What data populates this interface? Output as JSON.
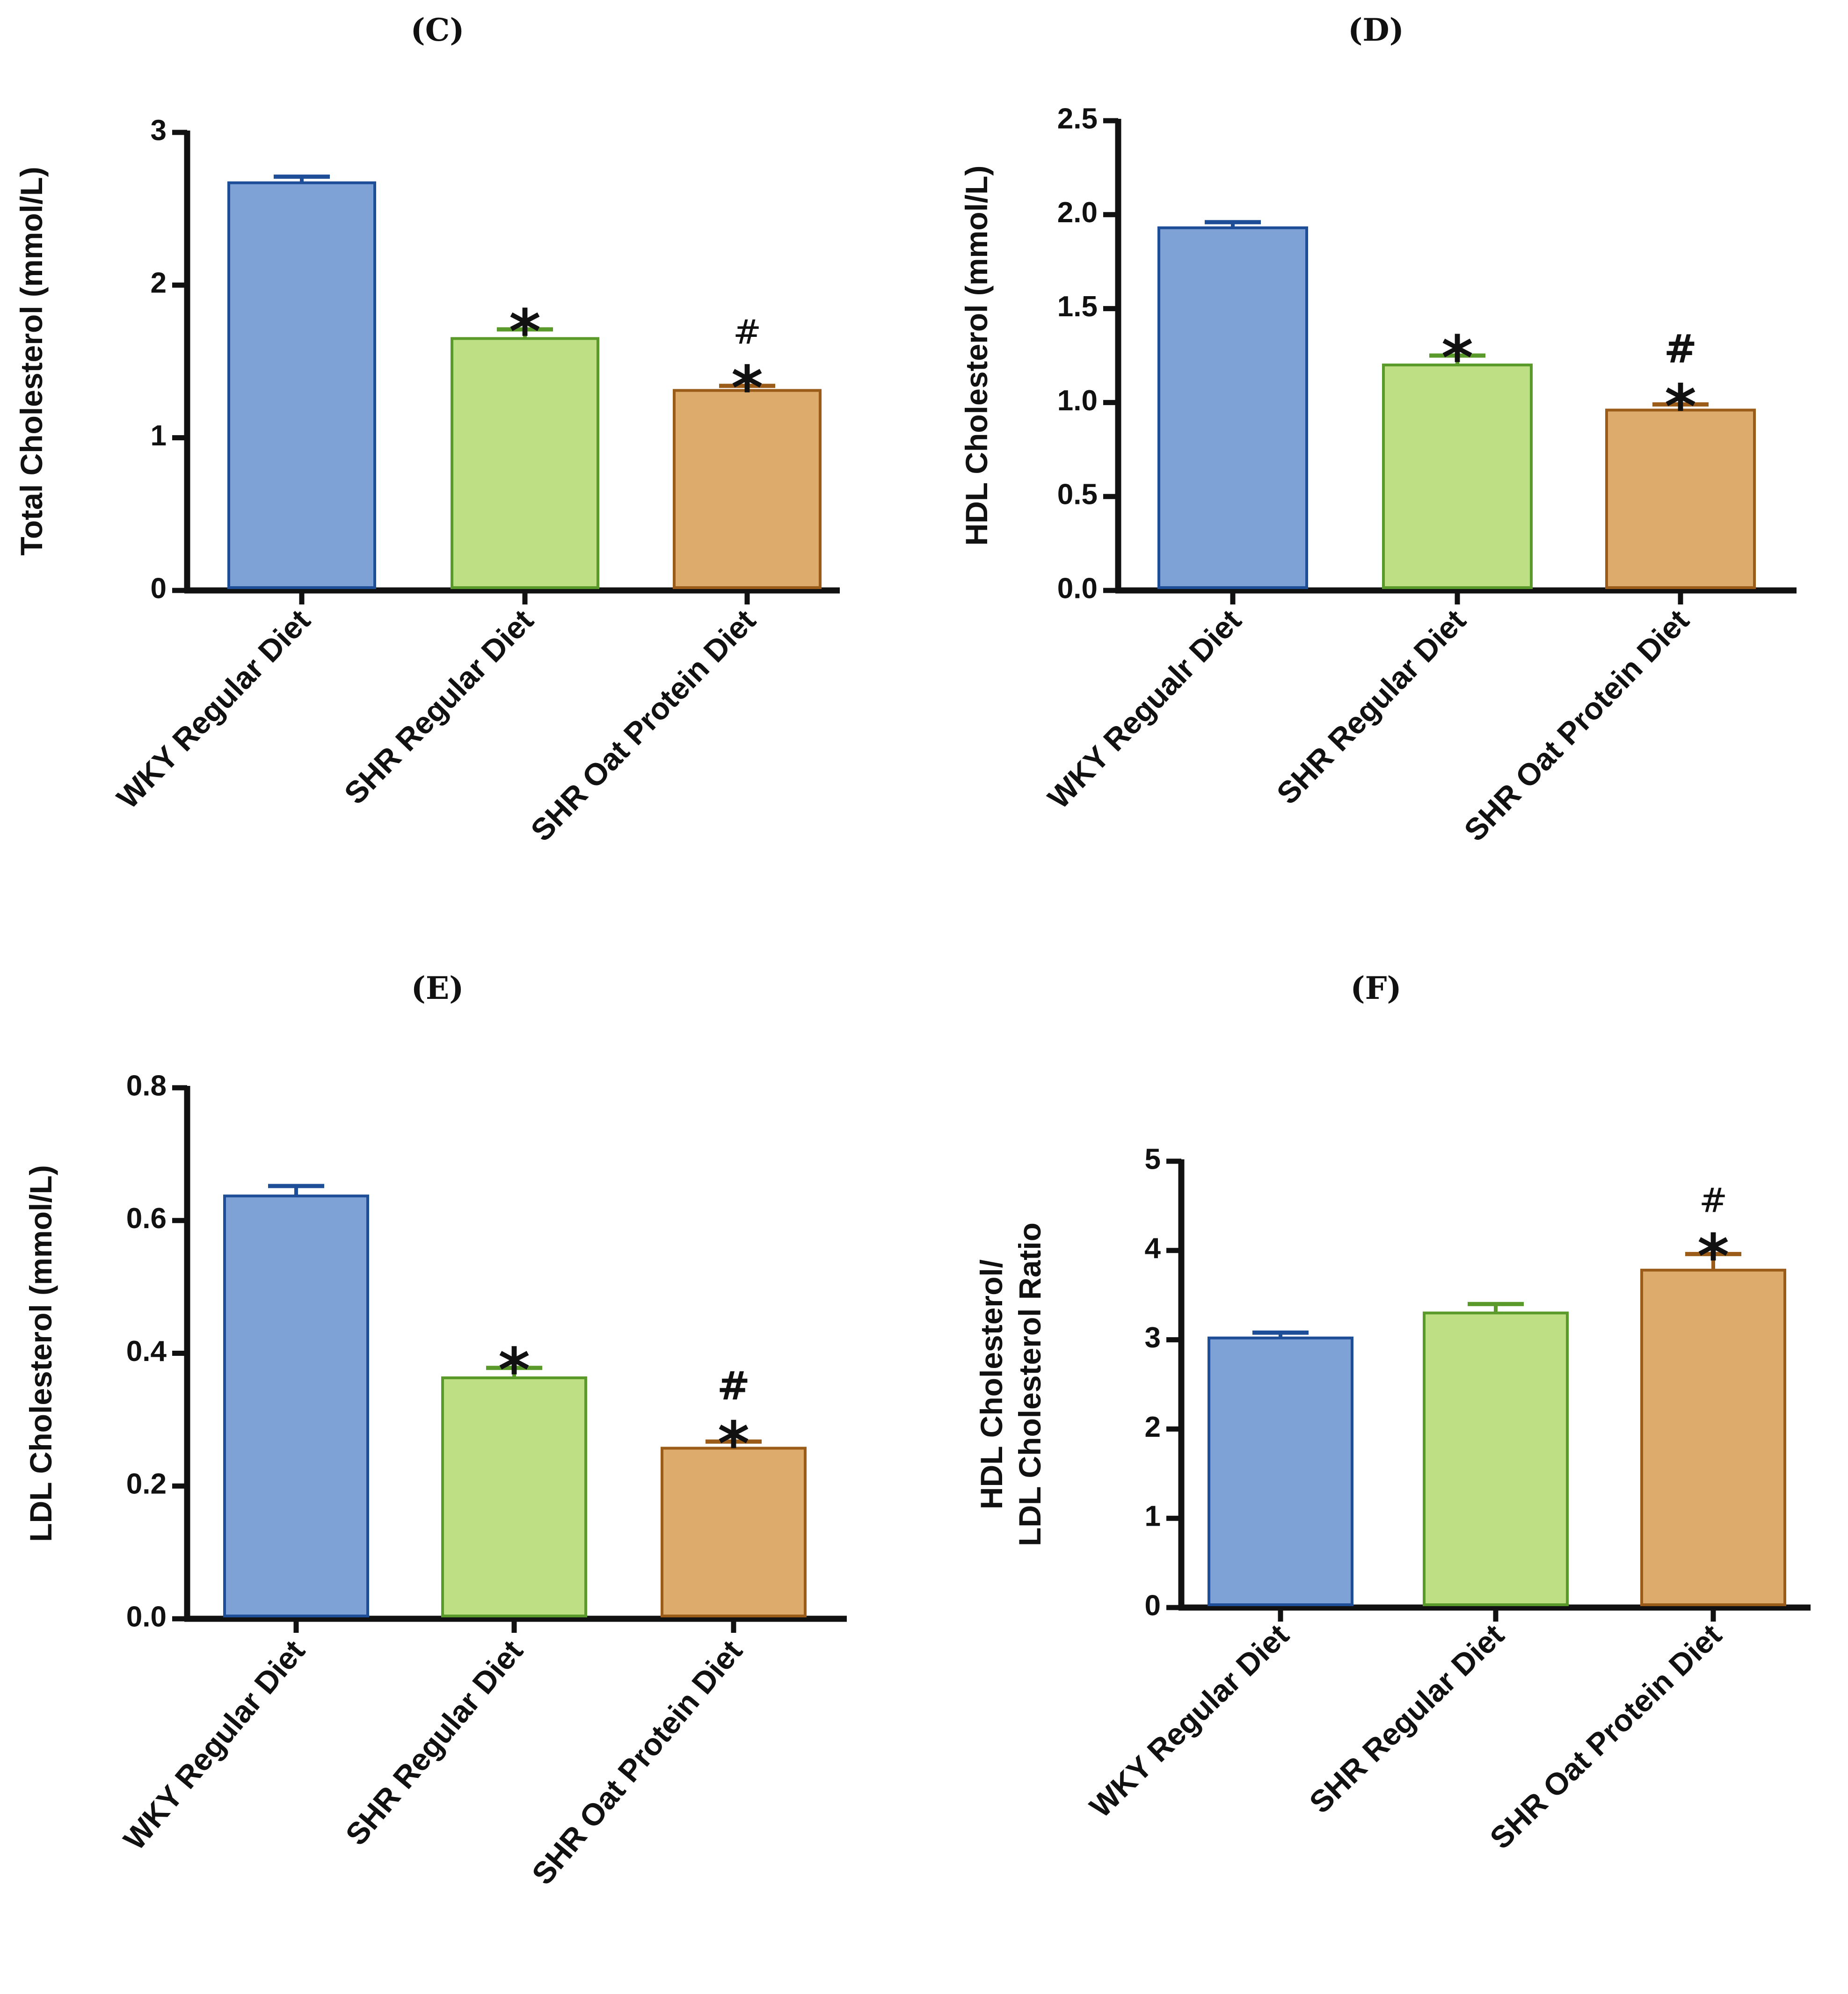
{
  "chart_data": [
    {
      "type": "bar",
      "panel": "(C)",
      "categories": [
        "WKY Regular Diet",
        "SHR Regular Diet",
        "SHR Oat Protein Diet"
      ],
      "values": [
        2.67,
        1.65,
        1.31
      ],
      "errors": [
        0.04,
        0.06,
        0.03
      ],
      "annotations": [
        "",
        "*",
        "#*"
      ],
      "ylabel": "Total Cholesterol (mmol/L)",
      "xlabel": "",
      "ylim": [
        0,
        3
      ],
      "yticks": [
        0,
        1,
        2,
        3
      ],
      "ytick_labels": [
        "0",
        "1",
        "2",
        "3"
      ],
      "colors": [
        "#7fa2d6",
        "#bfdf85",
        "#ddac6d"
      ],
      "edge_colors": [
        "#1f4e99",
        "#5a9a2a",
        "#9a5c18"
      ]
    },
    {
      "type": "bar",
      "panel": "(D)",
      "categories": [
        "WKY Regualr Diet",
        "SHR Regular Diet",
        "SHR Oat Protein Diet"
      ],
      "values": [
        1.93,
        1.2,
        0.96
      ],
      "errors": [
        0.03,
        0.05,
        0.03
      ],
      "annotations": [
        "",
        "*",
        "#*"
      ],
      "ylabel": "HDL Cholesterol (mmol/L)",
      "xlabel": "",
      "ylim": [
        0,
        2.5
      ],
      "yticks": [
        0,
        0.5,
        1,
        1.5,
        2,
        2.5
      ],
      "ytick_labels": [
        "0.0",
        "0.5",
        "1.0",
        "1.5",
        "2.0",
        "2.5"
      ],
      "colors": [
        "#7fa2d6",
        "#bfdf85",
        "#ddac6d"
      ],
      "edge_colors": [
        "#1f4e99",
        "#5a9a2a",
        "#9a5c18"
      ]
    },
    {
      "type": "bar",
      "panel": "(E)",
      "categories": [
        "WKY Regular Diet",
        "SHR Regular Diet",
        "SHR Oat Protein Diet"
      ],
      "values": [
        0.637,
        0.363,
        0.257
      ],
      "errors": [
        0.015,
        0.015,
        0.01
      ],
      "annotations": [
        "",
        "*",
        "#*"
      ],
      "ylabel": "LDL Cholesterol (mmol/L)",
      "xlabel": "",
      "ylim": [
        0,
        0.8
      ],
      "yticks": [
        0,
        0.2,
        0.4,
        0.6,
        0.8
      ],
      "ytick_labels": [
        "0.0",
        "0.2",
        "0.4",
        "0.6",
        "0.8"
      ],
      "colors": [
        "#7fa2d6",
        "#bfdf85",
        "#ddac6d"
      ],
      "edge_colors": [
        "#1f4e99",
        "#5a9a2a",
        "#9a5c18"
      ]
    },
    {
      "type": "bar",
      "panel": "(F)",
      "categories": [
        "WKY Regular Diet",
        "SHR Regular Diet",
        "SHR Oat Protein Diet"
      ],
      "values": [
        3.02,
        3.3,
        3.78
      ],
      "errors": [
        0.06,
        0.1,
        0.18
      ],
      "annotations": [
        "",
        "",
        "#*"
      ],
      "ylabel": "HDL Cholesterol/\nLDL Cholesterol Ratio",
      "xlabel": "",
      "ylim": [
        0,
        5
      ],
      "yticks": [
        0,
        1,
        2,
        3,
        4,
        5
      ],
      "ytick_labels": [
        "0",
        "1",
        "2",
        "3",
        "4",
        "5"
      ],
      "colors": [
        "#7fa2d6",
        "#bfdf85",
        "#ddac6d"
      ],
      "edge_colors": [
        "#1f4e99",
        "#5a9a2a",
        "#9a5c18"
      ]
    }
  ]
}
